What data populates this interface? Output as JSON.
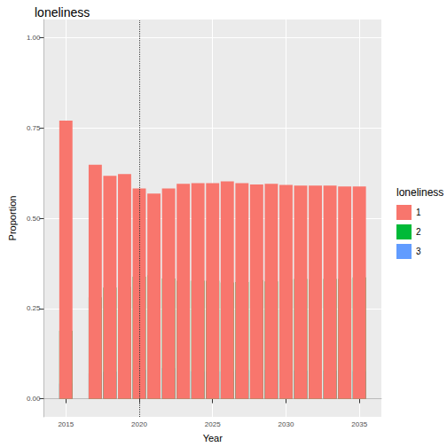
{
  "chart_data": {
    "type": "bar",
    "title": "loneliness",
    "stacked": true,
    "grid": true,
    "legend": "right",
    "legend_title": "loneliness",
    "x_label": "Year",
    "y_label": "Proportion",
    "x": [
      2015,
      2017,
      2018,
      2019,
      2020,
      2021,
      2022,
      2023,
      2024,
      2025,
      2026,
      2027,
      2028,
      2029,
      2030,
      2031,
      2032,
      2033,
      2034,
      2035
    ],
    "series": [
      {
        "name": "1",
        "color": "#F8766D",
        "values": [
          0.77,
          0.648,
          0.617,
          0.622,
          0.582,
          0.568,
          0.582,
          0.595,
          0.597,
          0.597,
          0.602,
          0.597,
          0.593,
          0.595,
          0.592,
          0.59,
          0.59,
          0.59,
          0.588,
          0.588
        ]
      },
      {
        "name": "2",
        "color": "#00BA38",
        "values": [
          0.188,
          0.281,
          0.308,
          0.31,
          0.338,
          0.342,
          0.333,
          0.327,
          0.327,
          0.327,
          0.322,
          0.323,
          0.329,
          0.325,
          0.33,
          0.332,
          0.33,
          0.332,
          0.332,
          0.336
        ]
      },
      {
        "name": "3",
        "color": "#619CFF",
        "values": [
          0.042,
          0.071,
          0.075,
          0.068,
          0.08,
          0.09,
          0.085,
          0.078,
          0.076,
          0.076,
          0.076,
          0.08,
          0.078,
          0.08,
          0.078,
          0.078,
          0.08,
          0.078,
          0.08,
          0.076
        ]
      }
    ],
    "reference_lines": [
      {
        "x": 2020,
        "line_style": "dotted"
      }
    ],
    "xlim": [
      2013.5,
      2036.5
    ],
    "xticks": [
      2015,
      2020,
      2025,
      2030,
      2035
    ],
    "ylim": [
      -0.05,
      1.05
    ],
    "yticks": [
      {
        "value": 0,
        "label": "0.00"
      },
      {
        "value": 0.25,
        "label": "0.25"
      },
      {
        "value": 0.5,
        "label": "0.50"
      },
      {
        "value": 0.75,
        "label": "0.75"
      },
      {
        "value": 1,
        "label": "1.00"
      }
    ]
  }
}
